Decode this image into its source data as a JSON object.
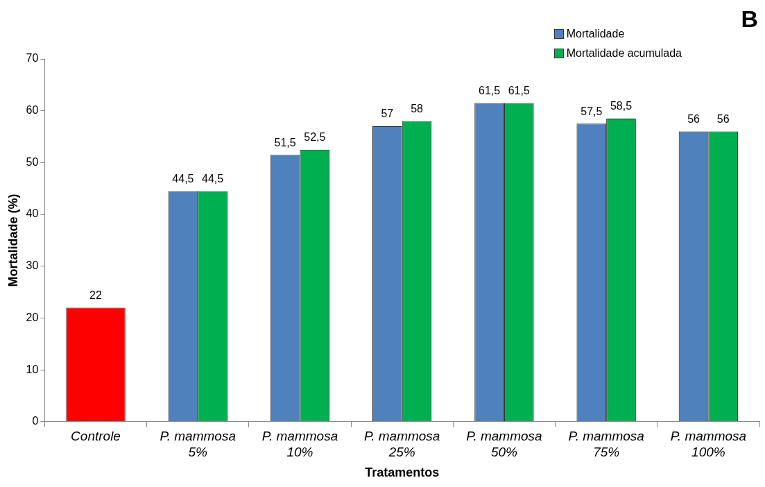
{
  "chart_data": {
    "type": "bar",
    "xlabel": "Tratamentos",
    "ylabel": "Mortalidade (%)",
    "annotations": [
      "B"
    ],
    "categories": [
      "Controle",
      "P. mammosa 5%",
      "P. mammosa 10%",
      "P. mammosa 25%",
      "P. mammosa 50%",
      "P. mammosa 75%",
      "P. mammosa 100%"
    ],
    "series": [
      {
        "name": "Mortalidade",
        "color": "#4f81bd",
        "colors": [
          "#ff0000",
          "#4f81bd",
          "#4f81bd",
          "#4f81bd",
          "#4f81bd",
          "#4f81bd",
          "#4f81bd"
        ],
        "values": [
          22,
          44.5,
          51.5,
          57,
          61.5,
          57.5,
          56
        ],
        "value_labels": [
          "22",
          "44,5",
          "51,5",
          "57",
          "61,5",
          "57,5",
          "56"
        ]
      },
      {
        "name": "Mortalidade acumulada",
        "color": "#00b050",
        "values": [
          null,
          44.5,
          52.5,
          58,
          61.5,
          58.5,
          56
        ],
        "value_labels": [
          null,
          "44,5",
          "52,5",
          "58",
          "61,5",
          "58,5",
          "56"
        ]
      }
    ],
    "ylim": [
      0,
      70
    ],
    "yticks": [
      0,
      10,
      20,
      30,
      40,
      50,
      60,
      70
    ],
    "legend": "top right"
  }
}
